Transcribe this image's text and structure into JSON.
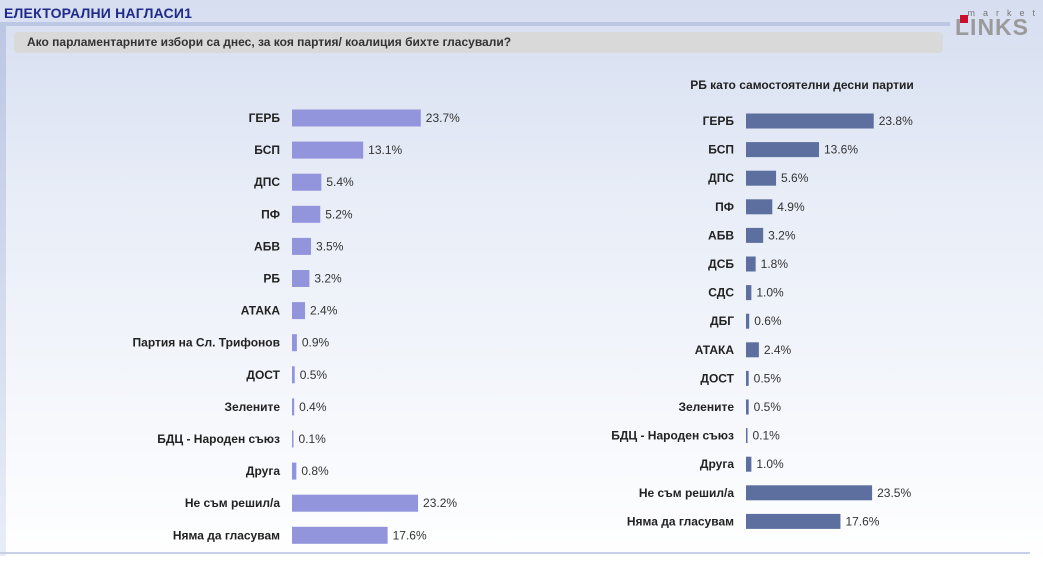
{
  "header": {
    "title": "ЕЛЕКТОРАЛНИ НАГЛАСИ1",
    "question": "Ако парламентарните избори са днес, за коя партия/ коалиция бихте гласували?"
  },
  "logo": {
    "top": "market",
    "main": "LINKS"
  },
  "colors": {
    "left_bar": "#9294dc",
    "right_bar": "#5d6f9e",
    "title": "#1f2a8a"
  },
  "chart_data": [
    {
      "type": "bar",
      "orientation": "horizontal",
      "title": "",
      "categories": [
        "ГЕРБ",
        "БСП",
        "ДПС",
        "ПФ",
        "АБВ",
        "РБ",
        "АТАКА",
        "Партия на Сл. Трифонов",
        "ДОСТ",
        "Зелените",
        "БДЦ - Народен съюз",
        "Друга",
        "Не съм решил/а",
        "Няма да гласувам"
      ],
      "values": [
        23.7,
        13.1,
        5.4,
        5.2,
        3.5,
        3.2,
        2.4,
        0.9,
        0.5,
        0.4,
        0.1,
        0.8,
        23.2,
        17.6
      ],
      "labels": [
        "23.7%",
        "13.1%",
        "5.4%",
        "5.2%",
        "3.5%",
        "3.2%",
        "2.4%",
        "0.9%",
        "0.5%",
        "0.4%",
        "0.1%",
        "0.8%",
        "23.2%",
        "17.6%"
      ],
      "xlim": [
        0,
        30
      ],
      "grid": false
    },
    {
      "type": "bar",
      "orientation": "horizontal",
      "title": "РБ като самостоятелни десни партии",
      "categories": [
        "ГЕРБ",
        "БСП",
        "ДПС",
        "ПФ",
        "АБВ",
        "ДСБ",
        "СДС",
        "ДБГ",
        "АТАКА",
        "ДОСТ",
        "Зелените",
        "БДЦ - Народен съюз",
        "Друга",
        "Не съм решил/а",
        "Няма да гласувам"
      ],
      "values": [
        23.8,
        13.6,
        5.6,
        4.9,
        3.2,
        1.8,
        1.0,
        0.6,
        2.4,
        0.5,
        0.5,
        0.1,
        1.0,
        23.5,
        17.6
      ],
      "labels": [
        "23.8%",
        "13.6%",
        "5.6%",
        "4.9%",
        "3.2%",
        "1.8%",
        "1.0%",
        "0.6%",
        "2.4%",
        "0.5%",
        "0.5%",
        "0.1%",
        "1.0%",
        "23.5%",
        "17.6%"
      ],
      "xlim": [
        0,
        30
      ],
      "grid": false
    }
  ]
}
